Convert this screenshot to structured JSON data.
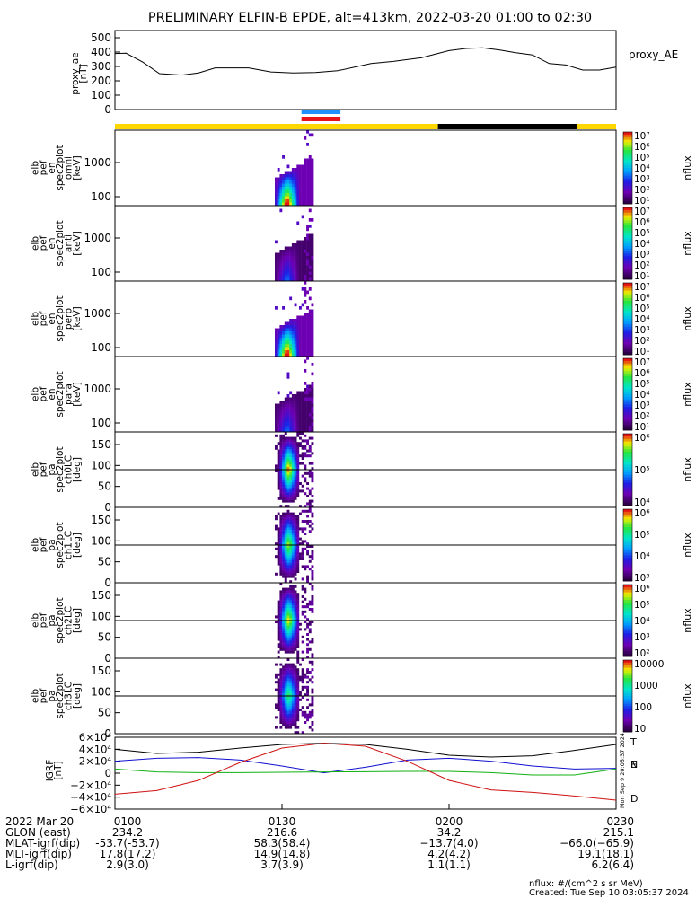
{
  "title": "PRELIMINARY ELFIN-B EPDE, alt=413km, 2022-03-20 01:00 to 02:30",
  "colors": {
    "yellow": "#ffd700",
    "black": "#000000",
    "blue_bar": "#1e90ff",
    "red_bar": "#e8141c",
    "grf_black": "#000000",
    "grf_blue": "#1010d0",
    "grf_green": "#10b010",
    "grf_red": "#d01010"
  },
  "chart_data": [
    {
      "type": "line",
      "name": "proxy_ae",
      "ylabel": [
        "proxy_ae",
        "[nT]"
      ],
      "legend": "proxy_AE",
      "ylim": [
        0,
        550
      ],
      "yticks": [
        "500",
        "400",
        "300",
        "200",
        "100",
        "0"
      ],
      "x": [
        0,
        2,
        5,
        8,
        12,
        15,
        18,
        24,
        28,
        32,
        36,
        40,
        46,
        50,
        52,
        55,
        60,
        63,
        66,
        69,
        72,
        75,
        78,
        81,
        84,
        87,
        90
      ],
      "values": [
        390,
        392,
        330,
        250,
        240,
        255,
        290,
        290,
        262,
        255,
        258,
        270,
        320,
        335,
        345,
        360,
        410,
        425,
        430,
        415,
        395,
        380,
        320,
        310,
        275,
        275,
        295
      ]
    },
    {
      "type": "bar",
      "name": "region-bar",
      "segments": [
        {
          "x0": 0,
          "x1": 58,
          "color": "yellow"
        },
        {
          "x0": 58,
          "x1": 83,
          "color": "black"
        },
        {
          "x0": 83,
          "x1": 90,
          "color": "yellow"
        }
      ],
      "markers": [
        {
          "x0": 33.5,
          "x1": 40.5,
          "color": "blue_bar"
        },
        {
          "x0": 33.5,
          "x1": 40.5,
          "color": "red_bar"
        }
      ]
    },
    {
      "type": "heatmap",
      "name": "spectra",
      "panels": [
        {
          "label": [
            "elb",
            "pef",
            "en",
            "spec2plot",
            "omni",
            "[keV]"
          ],
          "yticks": [
            "1000",
            "100"
          ],
          "kind": "energy",
          "intensity": 1.0,
          "lines": [],
          "colorbar_ticks": [
            "10⁷",
            "10⁶",
            "10⁵",
            "10⁴",
            "10³",
            "10²",
            "10¹"
          ],
          "colorbar_label": "nflux"
        },
        {
          "label": [
            "elb",
            "pef",
            "en",
            "spec2plot",
            "anti",
            "[keV]"
          ],
          "yticks": [
            "1000",
            "100"
          ],
          "kind": "energy",
          "intensity": 0.35,
          "lines": [],
          "colorbar_ticks": [
            "10⁷",
            "10⁶",
            "10⁵",
            "10⁴",
            "10³",
            "10²",
            "10¹"
          ],
          "colorbar_label": "nflux"
        },
        {
          "label": [
            "elb",
            "pef",
            "en",
            "spec2plot",
            "perp",
            "[keV]"
          ],
          "yticks": [
            "1000",
            "100"
          ],
          "kind": "energy",
          "intensity": 1.0,
          "lines": [],
          "colorbar_ticks": [
            "10⁷",
            "10⁶",
            "10⁵",
            "10⁴",
            "10³",
            "10²",
            "10¹"
          ],
          "colorbar_label": "nflux"
        },
        {
          "label": [
            "elb",
            "pef",
            "en",
            "spec2plot",
            "para",
            "[keV]"
          ],
          "yticks": [
            "1000",
            "100"
          ],
          "kind": "energy",
          "intensity": 0.35,
          "lines": [],
          "colorbar_ticks": [
            "10⁷",
            "10⁶",
            "10⁵",
            "10⁴",
            "10³",
            "10²",
            "10¹"
          ],
          "colorbar_label": "nflux"
        },
        {
          "label": [
            "elb",
            "pef",
            "pa",
            "spec2plot",
            "ch0LC",
            "[deg]"
          ],
          "yticks": [
            "150",
            "100",
            "50",
            "0"
          ],
          "kind": "pa",
          "intensity": 0.8,
          "lines": [
            90,
            90
          ],
          "colorbar_ticks": [
            "10⁶",
            "10⁵",
            "10⁴"
          ],
          "colorbar_label": "nflux"
        },
        {
          "label": [
            "elb",
            "pef",
            "pa",
            "spec2plot",
            "ch1LC",
            "[deg]"
          ],
          "yticks": [
            "150",
            "100",
            "50",
            "0"
          ],
          "kind": "pa",
          "intensity": 0.7,
          "lines": [
            90
          ],
          "colorbar_ticks": [
            "10⁶",
            "10⁵",
            "10⁴",
            "10³"
          ],
          "colorbar_label": "nflux"
        },
        {
          "label": [
            "elb",
            "pef",
            "pa",
            "spec2plot",
            "ch2LC",
            "[deg]"
          ],
          "yticks": [
            "150",
            "100",
            "50",
            "0"
          ],
          "kind": "pa",
          "intensity": 0.75,
          "lines": [
            90
          ],
          "colorbar_ticks": [
            "10⁶",
            "10⁵",
            "10⁴",
            "10³",
            "10²"
          ],
          "colorbar_label": "nflux"
        },
        {
          "label": [
            "elb",
            "pef",
            "pa",
            "spec2plot",
            "ch3LC",
            "[deg]"
          ],
          "yticks": [
            "150",
            "100",
            "50",
            "0"
          ],
          "kind": "pa",
          "intensity": 0.6,
          "lines": [
            90
          ],
          "colorbar_ticks": [
            "10000",
            "1000",
            "100",
            "10"
          ],
          "colorbar_label": "nflux"
        }
      ]
    },
    {
      "type": "line",
      "name": "igrf",
      "ylabel": [
        "IGRF",
        "[nT]"
      ],
      "ylim": [
        -60000,
        60000
      ],
      "yticks": [
        "6×10⁴",
        "4×10⁴",
        "2×10⁴",
        "0",
        "−2×10⁴",
        "−4×10⁴",
        "−6×10⁴"
      ],
      "x": [
        0,
        7.5,
        15,
        22.5,
        30,
        37.5,
        45,
        52.5,
        60,
        67.5,
        75,
        82.5,
        90
      ],
      "series": [
        {
          "name": "T",
          "color": "grf_black",
          "values": [
            40000,
            33000,
            35000,
            42000,
            48000,
            50000,
            48000,
            40000,
            30000,
            27000,
            29000,
            38000,
            48000
          ]
        },
        {
          "name": "N",
          "color": "grf_blue",
          "values": [
            20000,
            25000,
            26000,
            22000,
            12000,
            500,
            10000,
            22000,
            25000,
            20000,
            12000,
            7000,
            8000
          ]
        },
        {
          "name": "E",
          "color": "grf_green",
          "values": [
            7000,
            2000,
            1000,
            1000,
            1500,
            2000,
            2500,
            3000,
            3000,
            1000,
            -3000,
            -3000,
            7000
          ]
        },
        {
          "name": "D",
          "color": "grf_red",
          "values": [
            -35000,
            -29000,
            -12000,
            18000,
            42000,
            50000,
            45000,
            20000,
            -12000,
            -28000,
            -32000,
            -38000,
            -45000
          ]
        }
      ],
      "legend": [
        "T",
        "N",
        "E",
        "D"
      ]
    }
  ],
  "xaxis": {
    "row_labels": [
      "2022 Mar 20",
      "GLON (east)",
      "MLAT-igrf(dip)",
      "MLT-igrf(dip)",
      "L-igrf(dip)"
    ],
    "ticks": [
      {
        "x": 0,
        "values": [
          "0100",
          "234.2",
          "-53.7(-53.7)",
          "17.8(17.2)",
          "2.9(3.0)"
        ]
      },
      {
        "x": 30,
        "values": [
          "0130",
          "216.6",
          "58.3(58.4)",
          "14.9(14.8)",
          "3.7(3.9)"
        ]
      },
      {
        "x": 60,
        "values": [
          "0200",
          "34.2",
          "−13.7(4.0)",
          "4.2(4.2)",
          "1.1(1.1)"
        ]
      },
      {
        "x": 90,
        "values": [
          "0230",
          "215.1",
          "−66.0(−65.9)",
          "19.1(18.1)",
          "6.2(6.4)"
        ]
      }
    ]
  },
  "footer": {
    "units": "nflux: #/(cm^2 s sr MeV)",
    "created": "Created: Tue Sep 10 03:05:37 2024",
    "side_stamp": "Mon Sep 9 20:05:37 2024"
  }
}
